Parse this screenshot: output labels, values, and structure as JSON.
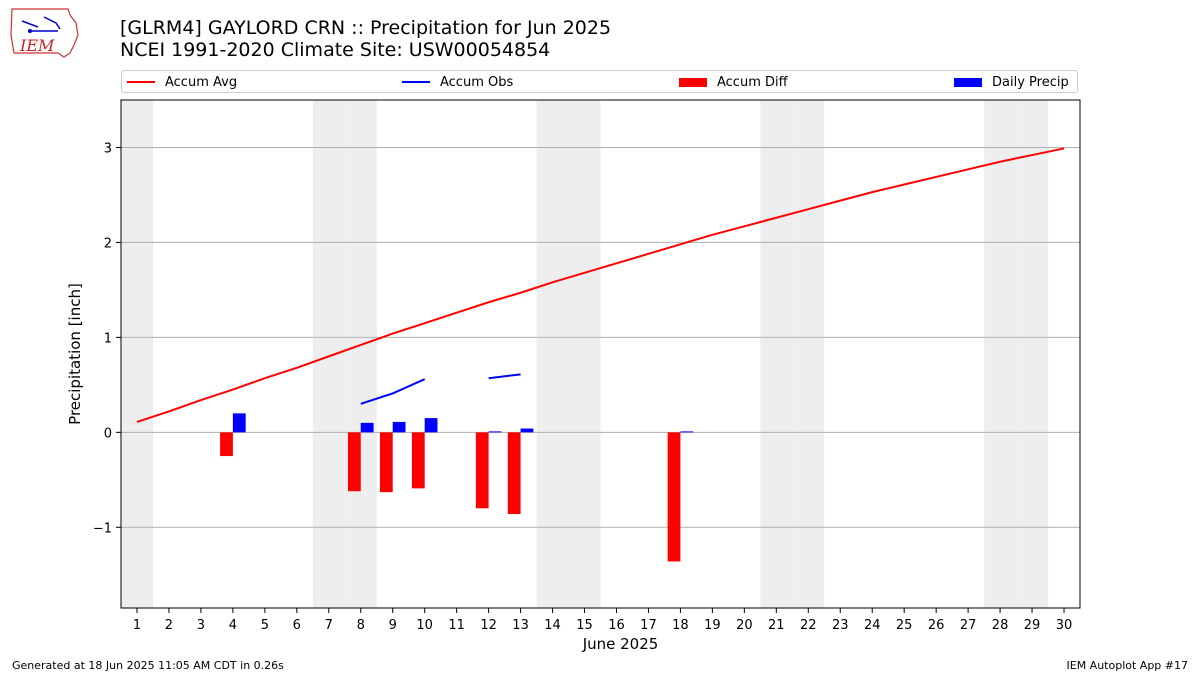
{
  "title_line1": "[GLRM4] GAYLORD CRN :: Precipitation for Jun 2025",
  "title_line2": "NCEI 1991-2020 Climate Site: USW00054854",
  "logo_text": "IEM",
  "footer_left": "Generated at 18 Jun 2025 11:05 AM CDT in 0.26s",
  "footer_right": "IEM Autoplot App #17",
  "colors": {
    "avg": "#ff0000",
    "obs": "#0000ff",
    "diff": "#ff0000",
    "daily": "#0000ff",
    "weekend": "#eeeeee"
  },
  "chart_data": {
    "type": "bar",
    "xlabel": "June 2025",
    "ylabel": "Precipitation [inch]",
    "xlim": [
      0.5,
      30.5
    ],
    "ylim": [
      -1.85,
      3.5
    ],
    "yticks": [
      -1,
      0,
      1,
      2,
      3
    ],
    "ytick_labels": [
      "−1",
      "0",
      "1",
      "2",
      "3"
    ],
    "grid": "y",
    "legend": "top, horizontal",
    "x": [
      1,
      2,
      3,
      4,
      5,
      6,
      7,
      8,
      9,
      10,
      11,
      12,
      13,
      14,
      15,
      16,
      17,
      18,
      19,
      20,
      21,
      22,
      23,
      24,
      25,
      26,
      27,
      28,
      29,
      30
    ],
    "weekend_days": [
      1,
      7,
      8,
      14,
      15,
      21,
      22,
      28,
      29
    ],
    "series": [
      {
        "name": "Accum Avg",
        "kind": "line",
        "values": [
          0.11,
          0.22,
          0.34,
          0.45,
          0.57,
          0.68,
          0.8,
          0.92,
          1.04,
          1.15,
          1.26,
          1.37,
          1.47,
          1.58,
          1.68,
          1.78,
          1.88,
          1.98,
          2.08,
          2.17,
          2.26,
          2.35,
          2.44,
          2.53,
          2.61,
          2.69,
          2.77,
          2.85,
          2.92,
          2.99
        ]
      },
      {
        "name": "Accum Obs",
        "kind": "line",
        "values": [
          null,
          null,
          null,
          null,
          null,
          null,
          null,
          0.3,
          0.41,
          0.56,
          null,
          0.57,
          0.61,
          null,
          null,
          null,
          null,
          null,
          null,
          null,
          null,
          null,
          null,
          null,
          null,
          null,
          null,
          null,
          null,
          null
        ]
      },
      {
        "name": "Accum Diff",
        "kind": "bar",
        "values": [
          null,
          null,
          null,
          -0.25,
          null,
          null,
          null,
          -0.62,
          -0.63,
          -0.59,
          null,
          -0.8,
          -0.86,
          null,
          null,
          null,
          null,
          -1.36,
          null,
          null,
          null,
          null,
          null,
          null,
          null,
          null,
          null,
          null,
          null,
          null
        ]
      },
      {
        "name": "Daily Precip",
        "kind": "bar",
        "values": [
          null,
          null,
          null,
          0.2,
          null,
          null,
          null,
          0.1,
          0.11,
          0.15,
          null,
          0.01,
          0.04,
          null,
          null,
          null,
          null,
          0.01,
          null,
          null,
          null,
          null,
          null,
          null,
          null,
          null,
          null,
          null,
          null,
          null
        ]
      }
    ]
  }
}
